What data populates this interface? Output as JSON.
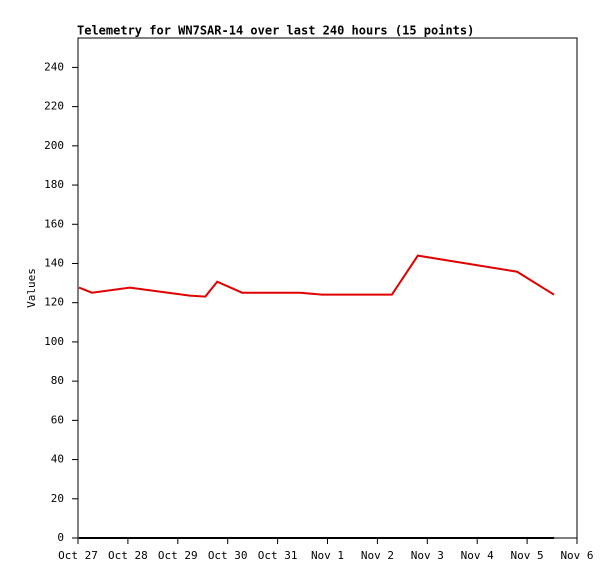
{
  "chart_data": {
    "type": "line",
    "title": "Telemetry for WN7SAR-14 over last 240 hours (15 points)",
    "y_label": "Values",
    "x": [
      0.02,
      0.28,
      1.04,
      2.24,
      2.55,
      2.79,
      3.29,
      3.85,
      4.45,
      4.89,
      5.55,
      6.29,
      6.81,
      8.8,
      9.54
    ],
    "series": [
      {
        "color": "#e00000",
        "values": [
          127.7,
          125.1,
          127.7,
          123.6,
          123.1,
          130.7,
          125.1,
          125.1,
          125.1,
          124.1,
          124.1,
          124.1,
          144.0,
          135.8,
          124.1
        ]
      },
      {
        "color": "#000000",
        "values": [
          0,
          0,
          0,
          0,
          0,
          0,
          0,
          0,
          0,
          0,
          0,
          0,
          0,
          0,
          0
        ]
      }
    ],
    "xlim": [
      0,
      10
    ],
    "xticks": [
      {
        "value": 0,
        "label": "Oct 27"
      },
      {
        "value": 1,
        "label": "Oct 28"
      },
      {
        "value": 2,
        "label": "Oct 29"
      },
      {
        "value": 3,
        "label": "Oct 30"
      },
      {
        "value": 4,
        "label": "Oct 31"
      },
      {
        "value": 5,
        "label": "Nov 1"
      },
      {
        "value": 6,
        "label": "Nov 2"
      },
      {
        "value": 7,
        "label": "Nov 3"
      },
      {
        "value": 8,
        "label": "Nov 4"
      },
      {
        "value": 9,
        "label": "Nov 5"
      },
      {
        "value": 10,
        "label": "Nov 6"
      }
    ],
    "ylim": [
      0,
      255
    ],
    "yticks": [
      0,
      20,
      40,
      60,
      80,
      100,
      120,
      140,
      160,
      180,
      200,
      220,
      240
    ],
    "grid": false
  }
}
